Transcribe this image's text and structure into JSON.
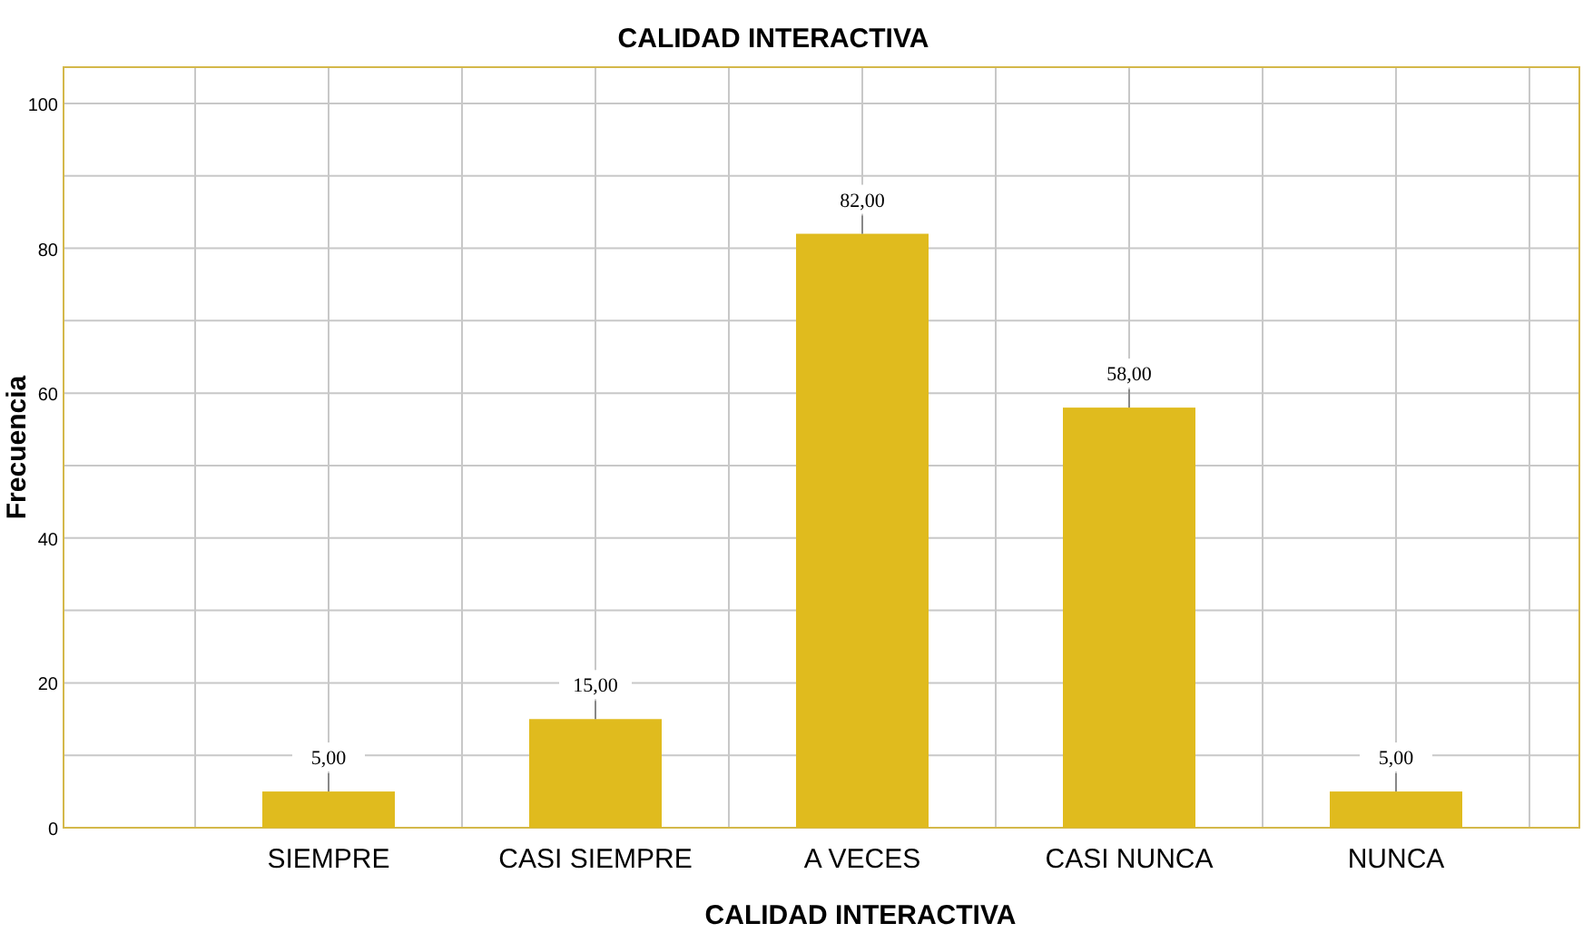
{
  "chart_data": {
    "type": "bar",
    "title": "CALIDAD INTERACTIVA",
    "xlabel": "CALIDAD INTERACTIVA",
    "ylabel": "Frecuencia",
    "categories": [
      "SIEMPRE",
      "CASI SIEMPRE",
      "A VECES",
      "CASI NUNCA",
      "NUNCA"
    ],
    "values": [
      5,
      15,
      82,
      58,
      5
    ],
    "value_labels": [
      "5,00",
      "15,00",
      "82,00",
      "58,00",
      "5,00"
    ],
    "color": "#e0bb1e",
    "ylim": [
      0,
      105
    ],
    "yticks": [
      0,
      20,
      40,
      60,
      80,
      100
    ],
    "grid": true
  }
}
